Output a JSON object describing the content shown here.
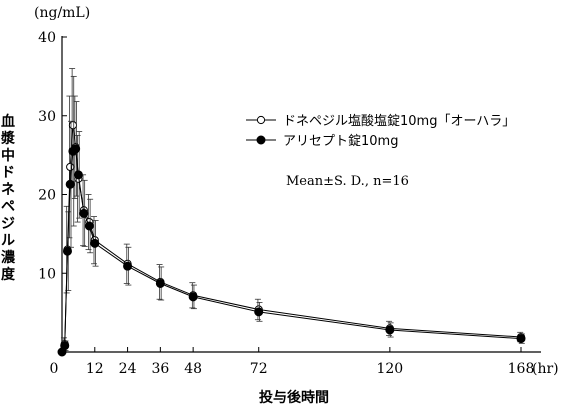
{
  "chart_data": {
    "type": "line",
    "title": "",
    "y_unit": "(ng/mL)",
    "x_unit": "(hr)",
    "ylabel_chars": [
      "血",
      "漿",
      "中",
      "ド",
      "ネ",
      "ペ",
      "ジ",
      "ル",
      "濃",
      "度"
    ],
    "xlabel": "投与後時間",
    "ylim": [
      0,
      40
    ],
    "y_ticks": [
      0,
      10,
      20,
      30,
      40
    ],
    "y_tick_labels": [
      "",
      "10",
      "20",
      "30",
      "40"
    ],
    "x_ticks": [
      0,
      12,
      24,
      36,
      48,
      72,
      120,
      168
    ],
    "x_tick_labels": [
      "0",
      "12",
      "24",
      "36",
      "48",
      "72",
      "120",
      "168"
    ],
    "xlim": [
      0,
      168
    ],
    "annotation": "Mean±S. D., n=16",
    "series": [
      {
        "name": "ドネペジル塩酸塩錠10mg「オーハラ」",
        "marker": "open-circle",
        "x": [
          0,
          1,
          2,
          3,
          4,
          5,
          6,
          8,
          10,
          12,
          24,
          36,
          48,
          72,
          120,
          168
        ],
        "y": [
          0,
          1.0,
          13.0,
          23.5,
          28.8,
          26.0,
          22.0,
          18.0,
          16.5,
          14.2,
          11.2,
          8.9,
          7.2,
          5.4,
          3.0,
          1.9
        ],
        "sd": [
          0,
          0.8,
          5.5,
          9.0,
          7.2,
          6.5,
          5.5,
          4.5,
          3.5,
          3.0,
          2.5,
          2.2,
          1.6,
          1.3,
          0.9,
          0.6
        ]
      },
      {
        "name": "アリセプト錠10mg",
        "marker": "filled-circle",
        "x": [
          0,
          1,
          2,
          3,
          4,
          5,
          6,
          8,
          10,
          12,
          24,
          36,
          48,
          72,
          120,
          168
        ],
        "y": [
          0,
          0.8,
          12.8,
          21.3,
          25.5,
          25.8,
          22.5,
          17.6,
          16.0,
          13.8,
          10.9,
          8.7,
          7.0,
          5.1,
          2.8,
          1.7
        ],
        "sd": [
          0,
          0.6,
          5.0,
          8.0,
          9.5,
          6.0,
          5.5,
          4.2,
          3.4,
          2.9,
          2.4,
          2.1,
          1.5,
          1.2,
          0.9,
          0.6
        ]
      }
    ]
  }
}
